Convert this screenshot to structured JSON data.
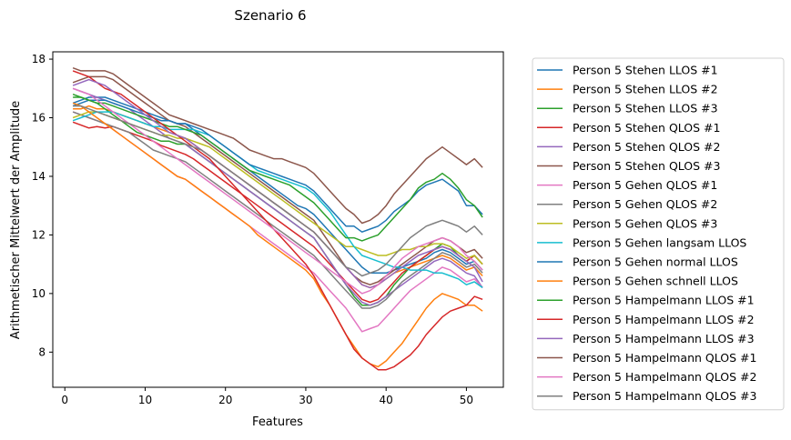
{
  "chart_data": {
    "type": "line",
    "title": "Szenario  6",
    "xlabel": "Features",
    "ylabel": "Arithmetischer Mittelwert der Amplitude",
    "xlim": [
      -1.5,
      54.6
    ],
    "ylim": [
      6.8,
      18.25
    ],
    "xticks": [
      0,
      10,
      20,
      30,
      40,
      50
    ],
    "yticks": [
      8,
      10,
      12,
      14,
      16,
      18
    ],
    "grid": false,
    "legend_position": "outside-right",
    "x": [
      1,
      2,
      3,
      4,
      5,
      6,
      7,
      8,
      9,
      10,
      11,
      12,
      13,
      14,
      15,
      16,
      17,
      18,
      19,
      20,
      21,
      22,
      23,
      24,
      25,
      26,
      27,
      28,
      29,
      30,
      31,
      32,
      33,
      34,
      35,
      36,
      37,
      38,
      39,
      40,
      41,
      42,
      43,
      44,
      45,
      46,
      47,
      48,
      49,
      50,
      51,
      52
    ],
    "series": [
      {
        "name": "Person 5 Stehen LLOS #1",
        "color": "#1f77b4",
        "values": [
          16.5,
          16.6,
          16.7,
          16.7,
          16.7,
          16.6,
          16.5,
          16.4,
          16.3,
          16.2,
          16.1,
          16.0,
          15.9,
          15.8,
          15.8,
          15.6,
          15.4,
          15.2,
          15.0,
          14.8,
          14.6,
          14.4,
          14.2,
          14.0,
          13.8,
          13.6,
          13.4,
          13.2,
          13.0,
          12.9,
          12.7,
          12.4,
          12.1,
          11.8,
          11.5,
          11.2,
          10.9,
          10.7,
          10.7,
          10.7,
          10.8,
          10.9,
          11.0,
          11.1,
          11.2,
          11.4,
          11.5,
          11.4,
          11.2,
          11.0,
          11.1,
          10.8
        ]
      },
      {
        "name": "Person 5 Stehen LLOS #2",
        "color": "#ff7f0e",
        "values": [
          16.3,
          16.3,
          16.4,
          16.3,
          16.3,
          16.2,
          16.1,
          16.0,
          15.9,
          15.8,
          15.7,
          15.6,
          15.5,
          15.4,
          15.3,
          15.1,
          14.9,
          14.7,
          14.5,
          14.3,
          14.1,
          13.9,
          13.7,
          13.5,
          13.3,
          13.1,
          12.9,
          12.7,
          12.5,
          12.3,
          12.1,
          11.8,
          11.5,
          11.2,
          10.9,
          10.6,
          10.3,
          10.2,
          10.3,
          10.5,
          10.7,
          10.8,
          10.9,
          11.0,
          11.1,
          11.2,
          11.3,
          11.2,
          11.0,
          10.8,
          10.9,
          10.6
        ]
      },
      {
        "name": "Person 5 Stehen LLOS #3",
        "color": "#2ca02c",
        "values": [
          16.7,
          16.7,
          16.6,
          16.5,
          16.3,
          16.1,
          15.9,
          15.7,
          15.5,
          15.4,
          15.3,
          15.2,
          15.2,
          15.1,
          15.1,
          14.9,
          14.7,
          14.5,
          14.3,
          14.1,
          13.9,
          13.7,
          13.5,
          13.3,
          13.1,
          12.9,
          12.7,
          12.5,
          12.3,
          12.1,
          11.9,
          11.5,
          11.1,
          10.7,
          10.3,
          9.9,
          9.6,
          9.6,
          9.7,
          9.9,
          10.3,
          10.6,
          10.9,
          11.1,
          11.3,
          11.5,
          11.7,
          11.6,
          11.3,
          11.1,
          11.3,
          11.0
        ]
      },
      {
        "name": "Person 5 Stehen QLOS #1",
        "color": "#d62728",
        "values": [
          15.85,
          15.75,
          15.65,
          15.7,
          15.65,
          15.7,
          15.6,
          15.5,
          15.4,
          15.3,
          15.2,
          15.05,
          14.95,
          14.85,
          14.75,
          14.6,
          14.4,
          14.2,
          14.0,
          13.8,
          13.6,
          13.4,
          13.2,
          13.0,
          12.8,
          12.6,
          12.4,
          12.2,
          12.0,
          11.8,
          11.6,
          11.3,
          11.0,
          10.7,
          10.4,
          10.1,
          9.8,
          9.7,
          9.8,
          10.1,
          10.4,
          10.7,
          10.9,
          11.1,
          11.3,
          11.5,
          11.6,
          11.5,
          11.3,
          11.1,
          11.3,
          11.0
        ]
      },
      {
        "name": "Person 5 Stehen QLOS #2",
        "color": "#9467bd",
        "values": [
          17.0,
          16.9,
          16.8,
          16.7,
          16.6,
          16.5,
          16.4,
          16.3,
          16.1,
          15.9,
          15.7,
          15.5,
          15.3,
          15.2,
          15.1,
          14.9,
          14.7,
          14.5,
          14.3,
          14.1,
          13.9,
          13.7,
          13.5,
          13.3,
          13.1,
          12.9,
          12.7,
          12.5,
          12.3,
          12.1,
          11.9,
          11.5,
          11.1,
          10.7,
          10.3,
          10.0,
          9.7,
          9.6,
          9.7,
          9.9,
          10.1,
          10.3,
          10.5,
          10.7,
          10.9,
          11.1,
          11.2,
          11.1,
          10.9,
          10.7,
          10.6,
          10.2
        ]
      },
      {
        "name": "Person 5 Stehen QLOS #3",
        "color": "#8c564b",
        "values": [
          17.2,
          17.3,
          17.4,
          17.4,
          17.4,
          17.3,
          17.1,
          16.9,
          16.7,
          16.5,
          16.3,
          16.1,
          15.9,
          15.8,
          15.7,
          15.5,
          15.3,
          15.1,
          14.9,
          14.7,
          14.5,
          14.3,
          14.1,
          13.9,
          13.7,
          13.5,
          13.3,
          13.1,
          12.9,
          12.7,
          12.5,
          12.1,
          11.7,
          11.3,
          10.9,
          10.6,
          10.4,
          10.3,
          10.4,
          10.6,
          10.8,
          11.0,
          11.2,
          11.4,
          11.6,
          11.8,
          11.9,
          11.8,
          11.6,
          11.4,
          11.5,
          11.2
        ]
      },
      {
        "name": "Person 5 Gehen QLOS #1",
        "color": "#e377c2",
        "values": [
          16.2,
          16.1,
          16.0,
          15.9,
          15.8,
          15.6,
          15.4,
          15.2,
          15.0,
          14.8,
          14.6,
          14.4,
          14.2,
          14.0,
          13.9,
          13.7,
          13.5,
          13.3,
          13.1,
          12.9,
          12.7,
          12.5,
          12.3,
          12.1,
          11.9,
          11.7,
          11.5,
          11.3,
          11.1,
          10.9,
          10.7,
          10.4,
          10.1,
          9.8,
          9.5,
          9.1,
          8.7,
          8.8,
          8.9,
          9.2,
          9.5,
          9.8,
          10.1,
          10.3,
          10.5,
          10.7,
          10.9,
          10.8,
          10.6,
          10.4,
          10.5,
          10.2
        ]
      },
      {
        "name": "Person 5 Gehen QLOS #2",
        "color": "#7f7f7f",
        "values": [
          16.2,
          16.1,
          16.0,
          15.9,
          15.8,
          15.7,
          15.6,
          15.5,
          15.3,
          15.1,
          14.9,
          14.8,
          14.7,
          14.6,
          14.5,
          14.3,
          14.1,
          13.9,
          13.7,
          13.5,
          13.3,
          13.1,
          12.9,
          12.7,
          12.5,
          12.3,
          12.1,
          11.9,
          11.7,
          11.5,
          11.3,
          11.0,
          10.7,
          10.4,
          10.1,
          9.8,
          9.5,
          9.5,
          9.6,
          9.8,
          10.1,
          10.4,
          10.6,
          10.8,
          11.0,
          11.2,
          11.4,
          11.3,
          11.1,
          10.9,
          11.0,
          10.7
        ]
      },
      {
        "name": "Person 5 Gehen QLOS #3",
        "color": "#bcbd22",
        "values": [
          16.0,
          16.1,
          16.2,
          16.2,
          16.1,
          16.0,
          15.9,
          15.8,
          15.7,
          15.6,
          15.5,
          15.4,
          15.4,
          15.3,
          15.3,
          15.2,
          15.1,
          15.0,
          14.8,
          14.6,
          14.4,
          14.2,
          14.0,
          13.8,
          13.6,
          13.4,
          13.2,
          13.0,
          12.8,
          12.6,
          12.4,
          12.2,
          12.0,
          11.8,
          11.6,
          11.6,
          11.5,
          11.4,
          11.3,
          11.3,
          11.4,
          11.5,
          11.5,
          11.6,
          11.6,
          11.7,
          11.7,
          11.6,
          11.4,
          11.2,
          11.3,
          11.0
        ]
      },
      {
        "name": "Person 5 Gehen langsam LLOS",
        "color": "#17becf",
        "values": [
          15.9,
          16.0,
          16.1,
          16.2,
          16.2,
          16.2,
          16.1,
          16.0,
          15.9,
          15.8,
          15.7,
          15.7,
          15.6,
          15.6,
          15.6,
          15.6,
          15.5,
          15.4,
          15.2,
          15.0,
          14.8,
          14.6,
          14.4,
          14.2,
          14.1,
          14.0,
          13.9,
          13.8,
          13.7,
          13.6,
          13.4,
          13.1,
          12.8,
          12.4,
          12.0,
          11.6,
          11.3,
          11.2,
          11.1,
          11.0,
          10.9,
          10.9,
          10.8,
          10.8,
          10.8,
          10.7,
          10.7,
          10.6,
          10.5,
          10.3,
          10.4,
          10.2
        ]
      },
      {
        "name": "Person 5 Gehen normal LLOS",
        "color": "#1f77b4",
        "values": [
          16.4,
          16.5,
          16.6,
          16.6,
          16.6,
          16.5,
          16.4,
          16.3,
          16.2,
          16.1,
          16.0,
          15.9,
          15.9,
          15.8,
          15.8,
          15.7,
          15.6,
          15.4,
          15.2,
          15.0,
          14.8,
          14.6,
          14.4,
          14.3,
          14.2,
          14.1,
          14.0,
          13.9,
          13.8,
          13.7,
          13.5,
          13.2,
          12.9,
          12.6,
          12.3,
          12.3,
          12.1,
          12.2,
          12.3,
          12.5,
          12.8,
          13.0,
          13.2,
          13.5,
          13.7,
          13.8,
          13.9,
          13.7,
          13.5,
          13.0,
          13.0,
          12.7
        ]
      },
      {
        "name": "Person 5 Gehen schnell LLOS",
        "color": "#ff7f0e",
        "values": [
          16.5,
          16.4,
          16.2,
          16.0,
          15.8,
          15.6,
          15.4,
          15.2,
          15.0,
          14.8,
          14.6,
          14.4,
          14.2,
          14.0,
          13.9,
          13.7,
          13.5,
          13.3,
          13.1,
          12.9,
          12.7,
          12.5,
          12.3,
          12.0,
          11.8,
          11.6,
          11.4,
          11.2,
          11.0,
          10.8,
          10.5,
          10.0,
          9.6,
          9.1,
          8.6,
          8.2,
          7.8,
          7.6,
          7.5,
          7.7,
          8.0,
          8.3,
          8.7,
          9.1,
          9.5,
          9.8,
          10.0,
          9.9,
          9.8,
          9.6,
          9.6,
          9.4
        ]
      },
      {
        "name": "Person 5 Hampelmann LLOS #1",
        "color": "#2ca02c",
        "values": [
          16.8,
          16.7,
          16.6,
          16.5,
          16.5,
          16.4,
          16.3,
          16.2,
          16.1,
          16.0,
          15.9,
          15.8,
          15.7,
          15.7,
          15.6,
          15.5,
          15.4,
          15.2,
          15.0,
          14.8,
          14.6,
          14.4,
          14.2,
          14.1,
          14.0,
          13.9,
          13.8,
          13.7,
          13.5,
          13.3,
          13.1,
          12.8,
          12.5,
          12.2,
          11.9,
          11.9,
          11.8,
          11.9,
          12.0,
          12.3,
          12.6,
          12.9,
          13.2,
          13.6,
          13.8,
          13.9,
          14.1,
          13.9,
          13.6,
          13.2,
          13.0,
          12.6
        ]
      },
      {
        "name": "Person 5 Hampelmann LLOS #2",
        "color": "#d62728",
        "values": [
          17.6,
          17.5,
          17.4,
          17.2,
          17.0,
          16.9,
          16.8,
          16.6,
          16.4,
          16.2,
          16.0,
          15.8,
          15.6,
          15.4,
          15.2,
          15.0,
          14.8,
          14.6,
          14.3,
          14.0,
          13.7,
          13.4,
          13.1,
          12.8,
          12.5,
          12.2,
          11.9,
          11.6,
          11.3,
          11.0,
          10.6,
          10.1,
          9.6,
          9.1,
          8.6,
          8.1,
          7.8,
          7.6,
          7.4,
          7.4,
          7.5,
          7.7,
          7.9,
          8.2,
          8.6,
          8.9,
          9.2,
          9.4,
          9.5,
          9.6,
          9.9,
          9.8
        ]
      },
      {
        "name": "Person 5 Hampelmann LLOS #3",
        "color": "#9467bd",
        "values": [
          17.1,
          17.2,
          17.3,
          17.2,
          17.1,
          16.9,
          16.7,
          16.5,
          16.3,
          16.1,
          15.9,
          15.7,
          15.5,
          15.4,
          15.3,
          15.1,
          14.9,
          14.7,
          14.5,
          14.3,
          14.1,
          13.9,
          13.7,
          13.5,
          13.3,
          13.1,
          12.9,
          12.7,
          12.5,
          12.3,
          12.1,
          11.8,
          11.5,
          11.2,
          10.9,
          10.6,
          10.3,
          10.2,
          10.3,
          10.5,
          10.7,
          10.9,
          11.1,
          11.3,
          11.4,
          11.5,
          11.6,
          11.5,
          11.3,
          11.1,
          10.9,
          10.4
        ]
      },
      {
        "name": "Person 5 Hampelmann QLOS #1",
        "color": "#8c564b",
        "values": [
          17.7,
          17.6,
          17.6,
          17.6,
          17.6,
          17.5,
          17.3,
          17.1,
          16.9,
          16.7,
          16.5,
          16.3,
          16.1,
          16.0,
          15.9,
          15.8,
          15.7,
          15.6,
          15.5,
          15.4,
          15.3,
          15.1,
          14.9,
          14.8,
          14.7,
          14.6,
          14.6,
          14.5,
          14.4,
          14.3,
          14.1,
          13.8,
          13.5,
          13.2,
          12.9,
          12.7,
          12.4,
          12.5,
          12.7,
          13.0,
          13.4,
          13.7,
          14.0,
          14.3,
          14.6,
          14.8,
          15.0,
          14.8,
          14.6,
          14.4,
          14.6,
          14.3
        ]
      },
      {
        "name": "Person 5 Hampelmann QLOS #2",
        "color": "#e377c2",
        "values": [
          17.0,
          16.9,
          16.8,
          16.6,
          16.4,
          16.2,
          16.0,
          15.8,
          15.6,
          15.4,
          15.2,
          15.0,
          14.8,
          14.6,
          14.4,
          14.2,
          14.0,
          13.8,
          13.6,
          13.4,
          13.2,
          13.0,
          12.8,
          12.6,
          12.4,
          12.2,
          12.0,
          11.8,
          11.6,
          11.4,
          11.2,
          11.0,
          10.8,
          10.6,
          10.4,
          10.2,
          10.0,
          10.1,
          10.3,
          10.6,
          10.9,
          11.2,
          11.4,
          11.6,
          11.7,
          11.8,
          11.9,
          11.8,
          11.6,
          11.3,
          11.1,
          10.8
        ]
      },
      {
        "name": "Person 5 Hampelmann QLOS #3",
        "color": "#7f7f7f",
        "values": [
          16.4,
          16.4,
          16.3,
          16.2,
          16.1,
          16.0,
          15.9,
          15.8,
          15.7,
          15.6,
          15.5,
          15.4,
          15.3,
          15.2,
          15.1,
          15.0,
          14.9,
          14.7,
          14.5,
          14.3,
          14.1,
          13.9,
          13.7,
          13.5,
          13.3,
          13.1,
          12.9,
          12.7,
          12.5,
          12.3,
          12.1,
          11.8,
          11.5,
          11.2,
          10.9,
          10.8,
          10.6,
          10.7,
          10.8,
          11.0,
          11.3,
          11.6,
          11.9,
          12.1,
          12.3,
          12.4,
          12.5,
          12.4,
          12.3,
          12.1,
          12.3,
          12.0
        ]
      }
    ]
  }
}
